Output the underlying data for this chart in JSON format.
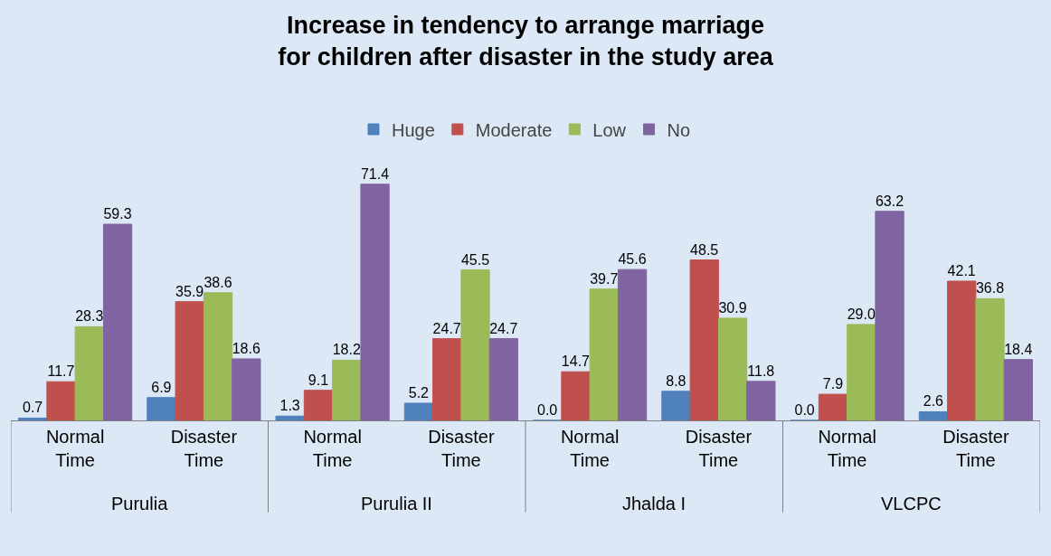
{
  "chart_data": {
    "type": "bar",
    "title": "Increase in tendency to arrange marriage for children after disaster in the study area",
    "categories": [
      "Normal Time",
      "Disaster Time",
      "Normal Time",
      "Disaster Time",
      "Normal Time",
      "Disaster Time",
      "Normal Time",
      "Disaster Time"
    ],
    "annotations": [
      "Purulia",
      "Purulia II",
      "Jhalda I",
      "VLCPC"
    ],
    "series": [
      {
        "name": "Huge",
        "color": "#4f81bd",
        "values": [
          0.7,
          6.9,
          1.3,
          5.2,
          0.0,
          8.8,
          0.0,
          2.6
        ],
        "value_labels": [
          "0.7",
          "6.9",
          "1.3",
          "5.2",
          "0.0",
          "8.8",
          "0.0",
          "2.6"
        ]
      },
      {
        "name": "Moderate",
        "color": "#c0504d",
        "values": [
          11.7,
          35.9,
          9.1,
          24.7,
          14.7,
          48.5,
          7.9,
          42.1
        ],
        "value_labels": [
          "11.7",
          "35.9",
          "9.1",
          "24.7",
          "14.7",
          "48.5",
          "7.9",
          "42.1"
        ]
      },
      {
        "name": "Low",
        "color": "#9bbb59",
        "values": [
          28.3,
          38.6,
          18.2,
          45.5,
          39.7,
          30.9,
          29.0,
          36.8
        ],
        "value_labels": [
          "28.3",
          "38.6",
          "18.2",
          "45.5",
          "39.7",
          "30.9",
          "29.0",
          "36.8"
        ]
      },
      {
        "name": "No",
        "color": "#8064a2",
        "values": [
          59.3,
          18.6,
          71.4,
          24.7,
          45.6,
          11.8,
          63.2,
          18.4
        ],
        "value_labels": [
          "59.3",
          "18.6",
          "71.4",
          "24.7",
          "45.6",
          "11.8",
          "63.2",
          "18.4"
        ]
      }
    ],
    "legend": "top"
  }
}
